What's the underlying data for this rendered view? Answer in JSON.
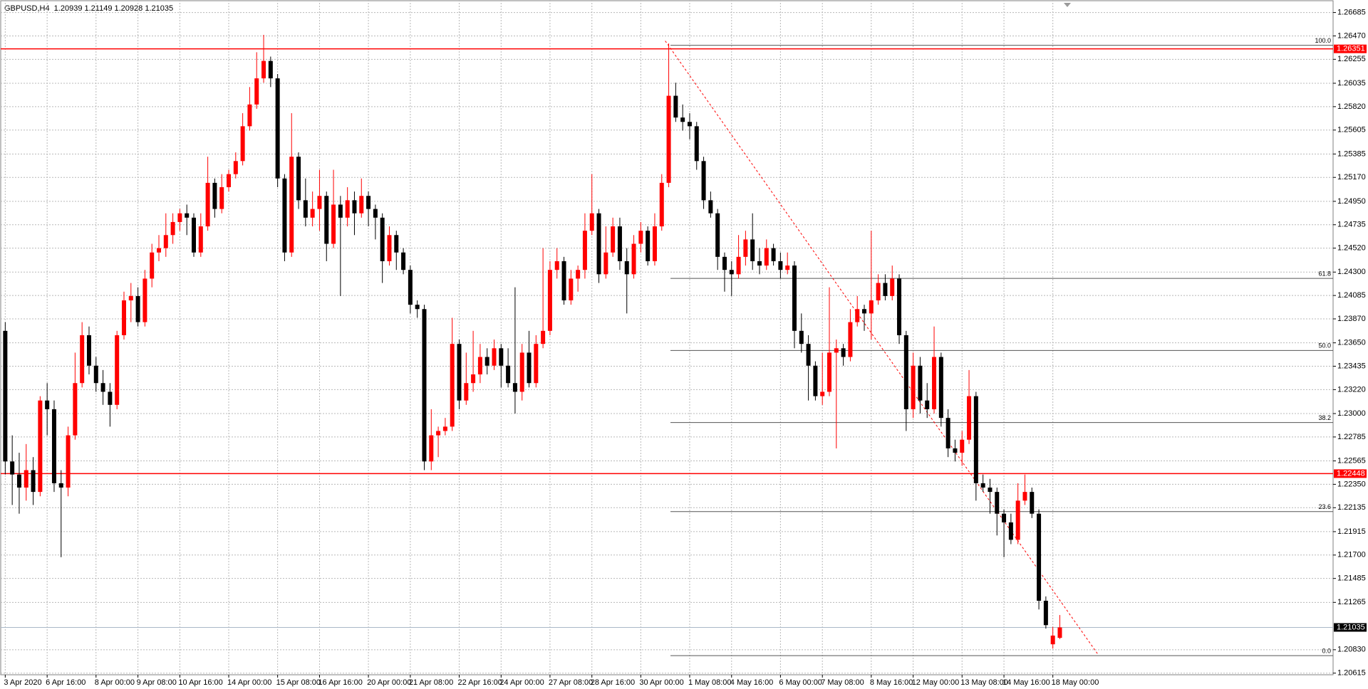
{
  "chart_data": {
    "type": "candlestick",
    "title": "GBPUSD,H4  1.20939 1.21149 1.20928 1.21035",
    "up_color": "#ff0000",
    "down_color": "#000000",
    "grid": true,
    "ylim": [
      1.206,
      1.268
    ],
    "yticks": [
      1.26685,
      {
        "value": 1.2647,
        "label": "1.26470"
      },
      1.26255,
      1.26035,
      {
        "value": 1.2582,
        "label": "1.25820"
      },
      1.25605,
      1.25385,
      {
        "value": 1.2517,
        "label": "1.25170"
      },
      {
        "value": 1.2495,
        "label": "1.24950"
      },
      1.24735,
      {
        "value": 1.2452,
        "label": "1.24520"
      },
      {
        "value": 1.243,
        "label": "1.24300"
      },
      1.24085,
      {
        "value": 1.2387,
        "label": "1.23870"
      },
      {
        "value": 1.2365,
        "label": "1.23650"
      },
      1.23435,
      {
        "value": 1.2322,
        "label": "1.23220"
      },
      {
        "value": 1.23,
        "label": "1.23000"
      },
      1.22785,
      1.22565,
      {
        "value": 1.2235,
        "label": "1.22350"
      },
      1.22135,
      1.21915,
      {
        "value": 1.217,
        "label": "1.21700"
      },
      1.21485,
      1.21265,
      {
        "value": 1.2083,
        "label": "1.20830"
      },
      1.20615
    ],
    "categories": [
      "3 Apr 2020",
      null,
      null,
      null,
      null,
      null,
      "6 Apr 16:00",
      null,
      null,
      null,
      null,
      null,
      null,
      "8 Apr 00:00",
      null,
      null,
      null,
      null,
      null,
      "9 Apr 08:00",
      null,
      null,
      null,
      null,
      null,
      "10 Apr 16:00",
      null,
      null,
      null,
      null,
      null,
      null,
      "14 Apr 00:00",
      null,
      null,
      null,
      null,
      null,
      null,
      "15 Apr 08:00",
      null,
      null,
      null,
      null,
      null,
      "16 Apr 16:00",
      null,
      null,
      null,
      null,
      null,
      null,
      "20 Apr 00:00",
      null,
      null,
      null,
      null,
      null,
      "21 Apr 08:00",
      null,
      null,
      null,
      null,
      null,
      null,
      "22 Apr 16:00",
      null,
      null,
      null,
      null,
      null,
      "24 Apr 00:00",
      null,
      null,
      null,
      null,
      null,
      null,
      "27 Apr 08:00",
      null,
      null,
      null,
      null,
      null,
      "28 Apr 16:00",
      null,
      null,
      null,
      null,
      null,
      null,
      "30 Apr 00:00",
      null,
      null,
      null,
      null,
      null,
      null,
      "1 May 08:00",
      null,
      null,
      null,
      null,
      null,
      "4 May 16:00",
      null,
      null,
      null,
      null,
      null,
      null,
      "6 May 00:00",
      null,
      null,
      null,
      null,
      null,
      "7 May 08:00",
      null,
      null,
      null,
      null,
      null,
      null,
      "8 May 16:00",
      null,
      null,
      null,
      null,
      null,
      "12 May 00:00",
      null,
      null,
      null,
      null,
      null,
      null,
      "13 May 08:00",
      null,
      null,
      null,
      null,
      null,
      "14 May 16:00",
      null,
      null,
      null,
      null,
      null,
      null,
      "18 May 00:00",
      null
    ],
    "open": [
      1.2376,
      1.2256,
      1.2244,
      1.2232,
      1.2248,
      1.2228,
      1.2312,
      1.2304,
      1.2236,
      1.2232,
      1.228,
      1.2328,
      1.2372,
      1.2344,
      1.2328,
      1.232,
      1.2308,
      1.2372,
      1.2404,
      1.2408,
      1.2384,
      1.2424,
      1.2448,
      1.2452,
      1.2464,
      1.2476,
      1.2484,
      1.248,
      1.2448,
      1.2472,
      1.2512,
      1.2488,
      1.2508,
      1.252,
      1.2532,
      1.2564,
      1.2584,
      1.2608,
      1.2624,
      1.2608,
      1.2516,
      1.2448,
      1.2536,
      1.2496,
      1.248,
      1.2488,
      1.25,
      1.2456,
      1.2492,
      1.248,
      1.2496,
      1.2484,
      1.25,
      1.2488,
      1.248,
      1.244,
      1.2464,
      1.2448,
      1.2432,
      1.24,
      1.2396,
      1.2256,
      1.228,
      1.2284,
      1.2288,
      1.2364,
      1.2312,
      1.2328,
      1.2336,
      1.2352,
      1.2344,
      1.236,
      1.2344,
      1.2328,
      1.232,
      1.2356,
      1.2328,
      1.2364,
      1.2376,
      1.2432,
      1.244,
      1.2404,
      1.2424,
      1.2432,
      1.2468,
      1.2484,
      1.2428,
      1.2448,
      1.2472,
      1.244,
      1.2428,
      1.2456,
      1.2468,
      1.244,
      1.2472,
      1.2512,
      1.2592,
      1.2572,
      1.2568,
      1.2564,
      1.2532,
      1.2496,
      1.2484,
      1.2444,
      1.2432,
      1.2428,
      1.2444,
      1.246,
      1.244,
      1.2436,
      1.2452,
      1.244,
      1.2432,
      1.2436,
      1.2376,
      1.2364,
      1.2344,
      1.2316,
      1.232,
      1.2356,
      1.236,
      1.2352,
      1.2384,
      1.2396,
      1.2392,
      1.2404,
      1.242,
      1.2408,
      1.2424,
      1.2372,
      1.2304,
      1.2344,
      1.2312,
      1.2304,
      1.2352,
      1.2296,
      1.2268,
      1.2264,
      1.2276,
      1.2316,
      1.2236,
      1.2232,
      1.2228,
      1.2208,
      1.22,
      1.2184,
      1.222,
      1.2228,
      1.2208,
      1.2128,
      1.2088,
      1.20939
    ],
    "high": [
      1.2384,
      1.228,
      1.2264,
      1.2272,
      1.226,
      1.2316,
      1.2328,
      1.2312,
      1.2248,
      1.2288,
      1.2356,
      1.2384,
      1.238,
      1.2352,
      1.234,
      1.2328,
      1.2376,
      1.2412,
      1.242,
      1.2416,
      1.2432,
      1.2456,
      1.2464,
      1.2484,
      1.2484,
      1.2488,
      1.2492,
      1.2484,
      1.2484,
      1.2536,
      1.2516,
      1.252,
      1.2524,
      1.254,
      1.2576,
      1.26,
      1.2632,
      1.2648,
      1.2628,
      1.2612,
      1.252,
      1.2576,
      1.254,
      1.2516,
      1.2504,
      1.2524,
      1.2504,
      1.2524,
      1.25,
      1.2508,
      1.2504,
      1.2516,
      1.2504,
      1.2492,
      1.2484,
      1.2472,
      1.2468,
      1.2452,
      1.2436,
      1.2404,
      1.24,
      1.2304,
      1.2288,
      1.2296,
      1.2388,
      1.2368,
      1.2356,
      1.2376,
      1.2364,
      1.236,
      1.2368,
      1.2364,
      1.236,
      1.2416,
      1.2364,
      1.2376,
      1.2372,
      1.2452,
      1.244,
      1.2452,
      1.2444,
      1.2432,
      1.2436,
      1.2484,
      1.252,
      1.2488,
      1.2472,
      1.248,
      1.248,
      1.2452,
      1.2464,
      1.2476,
      1.2472,
      1.2484,
      1.252,
      1.264,
      1.2604,
      1.2584,
      1.2576,
      1.2568,
      1.2536,
      1.2504,
      1.2488,
      1.2448,
      1.244,
      1.2464,
      1.2468,
      1.2484,
      1.2452,
      1.246,
      1.2456,
      1.2448,
      1.2448,
      1.244,
      1.2392,
      1.2372,
      1.2348,
      1.2356,
      1.2416,
      1.2368,
      1.2364,
      1.2396,
      1.2408,
      1.24,
      1.2468,
      1.2428,
      1.2428,
      1.2436,
      1.2428,
      1.2376,
      1.2356,
      1.2352,
      1.2328,
      1.238,
      1.2356,
      1.2304,
      1.2276,
      1.2284,
      1.234,
      1.232,
      1.2244,
      1.224,
      1.2232,
      1.2212,
      1.2208,
      1.2236,
      1.2244,
      1.2232,
      1.2212,
      1.2132,
      1.2104,
      1.21149
    ],
    "low": [
      1.2244,
      1.2216,
      1.2208,
      1.222,
      1.2216,
      1.2224,
      1.228,
      1.2228,
      1.2168,
      1.2224,
      1.2276,
      1.2324,
      1.2336,
      1.232,
      1.2308,
      1.2288,
      1.2304,
      1.2368,
      1.2384,
      1.238,
      1.238,
      1.2416,
      1.244,
      1.2444,
      1.2456,
      1.2468,
      1.2464,
      1.2444,
      1.2444,
      1.2468,
      1.248,
      1.2484,
      1.2504,
      1.2516,
      1.2528,
      1.256,
      1.258,
      1.2604,
      1.26,
      1.2508,
      1.244,
      1.2444,
      1.2488,
      1.2472,
      1.2472,
      1.2468,
      1.244,
      1.2452,
      1.2408,
      1.2472,
      1.2464,
      1.248,
      1.2472,
      1.246,
      1.242,
      1.2436,
      1.2432,
      1.2428,
      1.2392,
      1.2388,
      1.2248,
      1.2248,
      1.226,
      1.228,
      1.2284,
      1.2304,
      1.2308,
      1.232,
      1.2328,
      1.2336,
      1.234,
      1.2324,
      1.2324,
      1.23,
      1.2312,
      1.2324,
      1.2324,
      1.236,
      1.2372,
      1.2424,
      1.24,
      1.24,
      1.2412,
      1.2424,
      1.2464,
      1.242,
      1.2424,
      1.2444,
      1.2432,
      1.2392,
      1.2424,
      1.2448,
      1.2436,
      1.2436,
      1.2468,
      1.2508,
      1.2568,
      1.256,
      1.2552,
      1.2524,
      1.2488,
      1.248,
      1.2432,
      1.2412,
      1.2408,
      1.2424,
      1.2436,
      1.2432,
      1.2428,
      1.2432,
      1.2436,
      1.2424,
      1.2428,
      1.236,
      1.2356,
      1.2312,
      1.2312,
      1.2308,
      1.2316,
      1.2268,
      1.2344,
      1.2348,
      1.238,
      1.2376,
      1.2368,
      1.24,
      1.2404,
      1.2404,
      1.2364,
      1.2284,
      1.2296,
      1.23,
      1.2296,
      1.23,
      1.2288,
      1.226,
      1.2256,
      1.2252,
      1.2272,
      1.222,
      1.2228,
      1.2208,
      1.2188,
      1.2168,
      1.218,
      1.218,
      1.2216,
      1.2204,
      1.212,
      1.21024,
      1.2084,
      1.20928
    ],
    "close": [
      1.2256,
      1.2244,
      1.2232,
      1.2248,
      1.2228,
      1.2312,
      1.2304,
      1.2236,
      1.2232,
      1.228,
      1.2328,
      1.2372,
      1.2344,
      1.2328,
      1.232,
      1.2308,
      1.2372,
      1.2404,
      1.2408,
      1.2384,
      1.2424,
      1.2448,
      1.2452,
      1.2464,
      1.2476,
      1.2484,
      1.248,
      1.2448,
      1.2472,
      1.2512,
      1.2488,
      1.2508,
      1.252,
      1.2532,
      1.2564,
      1.2584,
      1.2608,
      1.2624,
      1.2608,
      1.2516,
      1.2448,
      1.2536,
      1.2496,
      1.248,
      1.2488,
      1.25,
      1.2456,
      1.2492,
      1.248,
      1.2496,
      1.2484,
      1.25,
      1.2488,
      1.248,
      1.244,
      1.2464,
      1.2448,
      1.2432,
      1.24,
      1.2396,
      1.2256,
      1.228,
      1.2284,
      1.2288,
      1.2364,
      1.2312,
      1.2328,
      1.2336,
      1.2352,
      1.2344,
      1.236,
      1.2344,
      1.2328,
      1.232,
      1.2356,
      1.2328,
      1.2364,
      1.2376,
      1.2432,
      1.244,
      1.2404,
      1.2424,
      1.2432,
      1.2468,
      1.2484,
      1.2428,
      1.2448,
      1.2472,
      1.244,
      1.2428,
      1.2456,
      1.2468,
      1.244,
      1.2472,
      1.2512,
      1.2592,
      1.2572,
      1.2568,
      1.2564,
      1.2532,
      1.2496,
      1.2484,
      1.2444,
      1.2432,
      1.2428,
      1.2444,
      1.246,
      1.244,
      1.2436,
      1.2452,
      1.244,
      1.2432,
      1.2436,
      1.2376,
      1.2364,
      1.2344,
      1.2316,
      1.232,
      1.2356,
      1.236,
      1.2352,
      1.2384,
      1.2396,
      1.2392,
      1.2404,
      1.242,
      1.2408,
      1.2424,
      1.2372,
      1.2304,
      1.2344,
      1.2312,
      1.2304,
      1.2352,
      1.2296,
      1.2268,
      1.2264,
      1.2276,
      1.2316,
      1.2236,
      1.2232,
      1.2228,
      1.2208,
      1.22,
      1.2184,
      1.222,
      1.2228,
      1.2208,
      1.2128,
      1.21056,
      1.2096,
      1.21035
    ],
    "hlines": [
      {
        "price": 1.26351,
        "color": "#ff0000"
      },
      {
        "price": 1.22448,
        "color": "#ff0000"
      }
    ],
    "current_price_color": "#a9b8c8",
    "fibo": {
      "color": "#555555",
      "levels": [
        {
          "label": "100.0",
          "price": 1.26384
        },
        {
          "label": "61.8",
          "price": 1.24242
        },
        {
          "label": "50.0",
          "price": 1.2358
        },
        {
          "label": "38.2",
          "price": 1.22918
        },
        {
          "label": "23.6",
          "price": 1.22099
        },
        {
          "label": "0.0",
          "price": 1.20776
        }
      ]
    },
    "trendline": {
      "color": "#ff0000",
      "values": [
        1.26424,
        1.20784
      ]
    }
  }
}
